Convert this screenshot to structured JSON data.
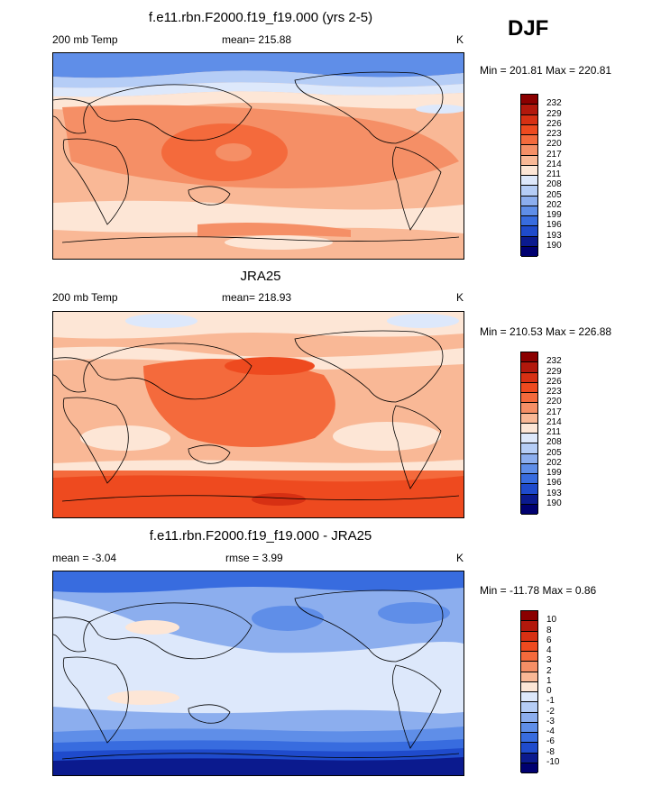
{
  "season": "DJF",
  "panels": [
    {
      "title": "f.e11.rbn.F2000.f19_f19.000 (yrs 2-5)",
      "left_label": "200 mb Temp",
      "center_label": "mean= 215.88",
      "right_label": "K",
      "range_label": "Min = 201.81 Max = 220.81",
      "palette": "abs",
      "labels": [
        "232",
        "229",
        "226",
        "223",
        "220",
        "217",
        "214",
        "211",
        "208",
        "205",
        "202",
        "199",
        "196",
        "193",
        "190"
      ]
    },
    {
      "title": "JRA25",
      "left_label": "200 mb Temp",
      "center_label": "mean= 218.93",
      "right_label": "K",
      "range_label": "Min = 210.53 Max = 226.88",
      "palette": "abs",
      "labels": [
        "232",
        "229",
        "226",
        "223",
        "220",
        "217",
        "214",
        "211",
        "208",
        "205",
        "202",
        "199",
        "196",
        "193",
        "190"
      ]
    },
    {
      "title": "f.e11.rbn.F2000.f19_f19.000 - JRA25",
      "left_label": "mean =  -3.04",
      "center_label": "rmse =   3.99",
      "right_label": "K",
      "range_label": "Min = -11.78 Max =   0.86",
      "palette": "diff",
      "labels": [
        "10",
        "8",
        "6",
        "4",
        "3",
        "2",
        "1",
        "0",
        "-1",
        "-2",
        "-3",
        "-4",
        "-6",
        "-8",
        "-10"
      ]
    }
  ],
  "palettes": {
    "abs": [
      "#8b0000",
      "#b2180c",
      "#d73013",
      "#ee4a1f",
      "#f46a3c",
      "#f58f66",
      "#f9b896",
      "#fde6d6",
      "#dde8fb",
      "#b5cdf6",
      "#8caeee",
      "#5f8ee8",
      "#386cdf",
      "#1f4bcc",
      "#0b1a8e",
      "#000070"
    ],
    "diff": [
      "#8b0000",
      "#b2180c",
      "#d73013",
      "#ee4a1f",
      "#f46a3c",
      "#f58f66",
      "#f9b896",
      "#fde6d6",
      "#dde8fb",
      "#b5cdf6",
      "#8caeee",
      "#5f8ee8",
      "#386cdf",
      "#1f4bcc",
      "#0b1a8e",
      "#000070"
    ]
  }
}
